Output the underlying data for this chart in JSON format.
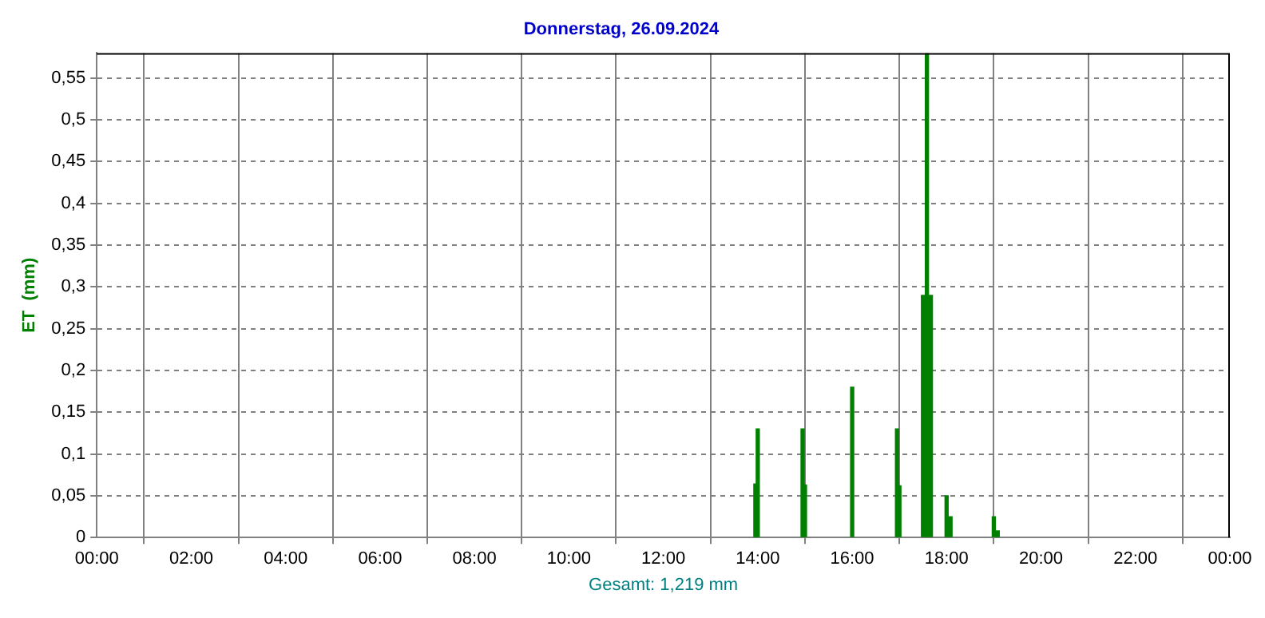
{
  "chart_data": {
    "type": "bar",
    "title": "Donnerstag, 26.09.2024",
    "xlabel": "Gesamt: 1,219 mm",
    "ylabel": "ET  (mm)",
    "x": [
      13.95,
      14.0,
      14.95,
      15.0,
      16.0,
      16.95,
      17.0,
      17.5,
      17.583,
      17.667,
      18.0,
      18.083,
      19.0,
      19.083
    ],
    "values": [
      0.064,
      0.13,
      0.13,
      0.063,
      0.18,
      0.13,
      0.062,
      0.29,
      0.58,
      0.29,
      0.05,
      0.025,
      0.025,
      0.008
    ],
    "color": "#008000",
    "xlim": [
      0,
      24
    ],
    "xticks": [
      {
        "value": 0,
        "label": "00:00"
      },
      {
        "value": 2,
        "label": "02:00"
      },
      {
        "value": 4,
        "label": "04:00"
      },
      {
        "value": 6,
        "label": "06:00"
      },
      {
        "value": 8,
        "label": "08:00"
      },
      {
        "value": 10,
        "label": "10:00"
      },
      {
        "value": 12,
        "label": "12:00"
      },
      {
        "value": 14,
        "label": "14:00"
      },
      {
        "value": 16,
        "label": "16:00"
      },
      {
        "value": 18,
        "label": "18:00"
      },
      {
        "value": 20,
        "label": "20:00"
      },
      {
        "value": 22,
        "label": "22:00"
      },
      {
        "value": 24,
        "label": "00:00"
      }
    ],
    "ylim": [
      0,
      0.58
    ],
    "yticks": [
      0,
      {
        "value": 0.05,
        "label": "0,05"
      },
      {
        "value": 0.1,
        "label": "0,1"
      },
      {
        "value": 0.15,
        "label": "0,15"
      },
      {
        "value": 0.2,
        "label": "0,2"
      },
      {
        "value": 0.25,
        "label": "0,25"
      },
      {
        "value": 0.3,
        "label": "0,3"
      },
      {
        "value": 0.35,
        "label": "0,35"
      },
      {
        "value": 0.4,
        "label": "0,4"
      },
      {
        "value": 0.45,
        "label": "0,45"
      },
      {
        "value": 0.5,
        "label": "0,5"
      },
      {
        "value": 0.55,
        "label": "0,55"
      }
    ],
    "grid": true,
    "line_style": "dashed"
  }
}
